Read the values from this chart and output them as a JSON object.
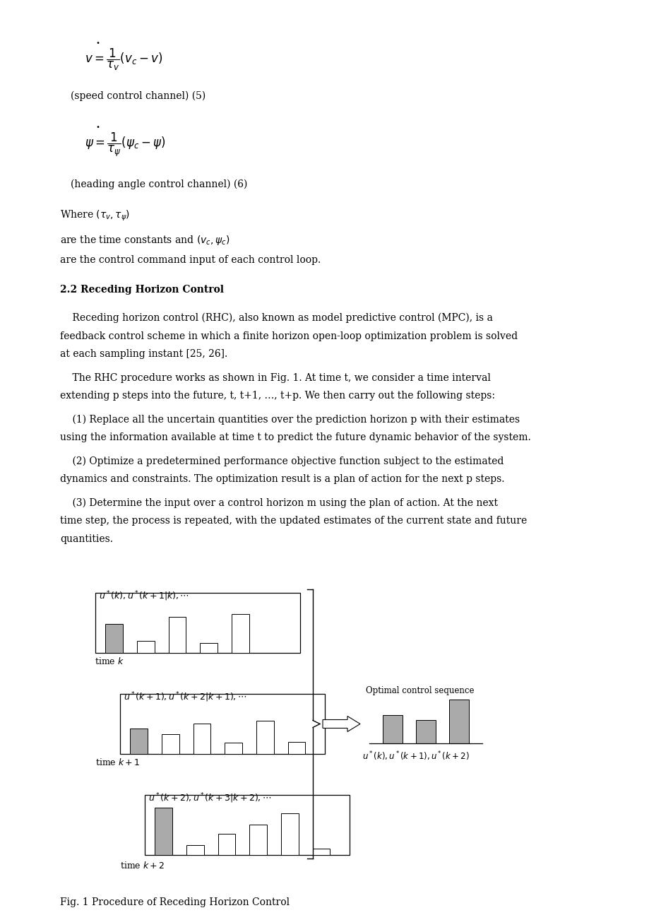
{
  "background_color": "#ffffff",
  "page_width": 9.2,
  "page_height": 13.02,
  "eq1_label": "(speed control channel) (5)",
  "eq2_label": "(heading angle control channel) (6)",
  "control_command_text": "are the control command input of each control loop.",
  "section_title": "2.2 Receding Horizon Control",
  "fig_caption": "Fig. 1 Procedure of Receding Horizon Control",
  "chart1_bars": [
    0.52,
    0.22,
    0.65,
    0.18,
    0.7,
    0.0
  ],
  "chart1_colors": [
    "#aaaaaa",
    "#ffffff",
    "#ffffff",
    "#ffffff",
    "#ffffff",
    "#ffffff"
  ],
  "chart2_bars": [
    0.45,
    0.35,
    0.55,
    0.2,
    0.6,
    0.22
  ],
  "chart2_colors": [
    "#aaaaaa",
    "#ffffff",
    "#ffffff",
    "#ffffff",
    "#ffffff",
    "#ffffff"
  ],
  "chart3_bars": [
    0.85,
    0.18,
    0.38,
    0.55,
    0.75,
    0.12
  ],
  "chart3_colors": [
    "#aaaaaa",
    "#ffffff",
    "#ffffff",
    "#ffffff",
    "#ffffff",
    "#ffffff"
  ],
  "opt_bars": [
    0.55,
    0.45,
    0.85
  ],
  "opt_colors": [
    "#aaaaaa",
    "#aaaaaa",
    "#aaaaaa"
  ]
}
